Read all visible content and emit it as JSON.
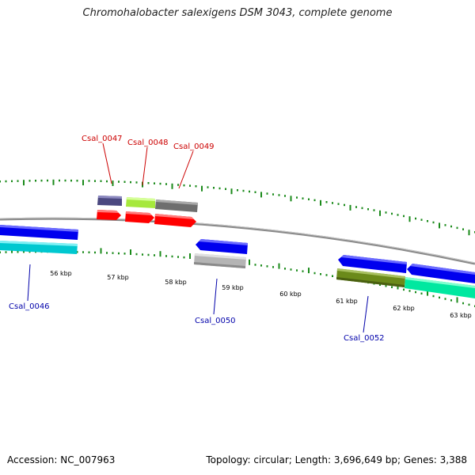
{
  "title": "Chromohalobacter salexigens DSM 3043, complete genome",
  "footer": {
    "accession": "Accession: NC_007963",
    "summary": "Topology: circular; Length: 3,696,649 bp; Genes: 3,388"
  },
  "colors": {
    "backbone": "#8a8a8a",
    "tick": "#1a8a1a",
    "label_top": "#cc0000",
    "label_bottom": "#0000aa"
  },
  "scale_labels": [
    "56 kbp",
    "57 kbp",
    "58 kbp",
    "59 kbp",
    "60 kbp",
    "61 kbp",
    "62 kbp",
    "63 kbp"
  ],
  "gene_labels_top": [
    "Csal_0047",
    "Csal_0048",
    "Csal_0049"
  ],
  "gene_labels_bottom": [
    "Csal_0046",
    "Csal_0050",
    "Csal_0052"
  ]
}
